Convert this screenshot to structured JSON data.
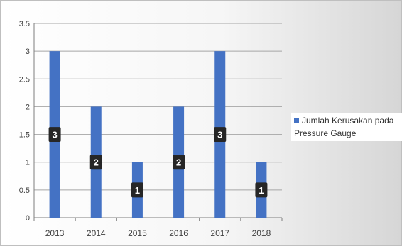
{
  "chart_data": {
    "type": "bar",
    "categories": [
      "2013",
      "2014",
      "2015",
      "2016",
      "2017",
      "2018"
    ],
    "series": [
      {
        "name": "Jumlah Kerusakan pada Pressure Gauge",
        "values": [
          3,
          2,
          1,
          2,
          3,
          1
        ]
      }
    ],
    "data_labels": [
      "3",
      "2",
      "1",
      "2",
      "3",
      "1"
    ],
    "yticks": [
      "0",
      "0.5",
      "1",
      "1.5",
      "2",
      "2.5",
      "3",
      "3.5"
    ],
    "ylim": [
      0,
      3.5
    ],
    "grid": true,
    "legend_position": "right",
    "colors": {
      "bar": "#4472c4",
      "label_bg": "#262626",
      "label_text": "#ffffff",
      "grid": "#a6a6a6"
    }
  }
}
